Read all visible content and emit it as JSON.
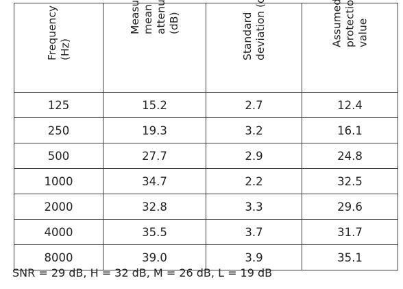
{
  "table": {
    "headers": [
      [
        "Frequency",
        "(Hz)"
      ],
      [
        "Measured",
        "mean",
        "attenuation",
        "(dB)"
      ],
      [
        "Standard",
        "deviation (dB)"
      ],
      [
        "Assumed",
        "protection",
        "value"
      ]
    ],
    "rows": [
      [
        "125",
        "15.2",
        "2.7",
        "12.4"
      ],
      [
        "250",
        "19.3",
        "3.2",
        "16.1"
      ],
      [
        "500",
        "27.7",
        "2.9",
        "24.8"
      ],
      [
        "1000",
        "34.7",
        "2.2",
        "32.5"
      ],
      [
        "2000",
        "32.8",
        "3.3",
        "29.6"
      ],
      [
        "4000",
        "35.5",
        "3.7",
        "31.7"
      ],
      [
        "8000",
        "39.0",
        "3.9",
        "35.1"
      ]
    ]
  },
  "footnote": "SNR = 29 dB, H = 32 dB, M = 26 dB, L = 19 dB"
}
